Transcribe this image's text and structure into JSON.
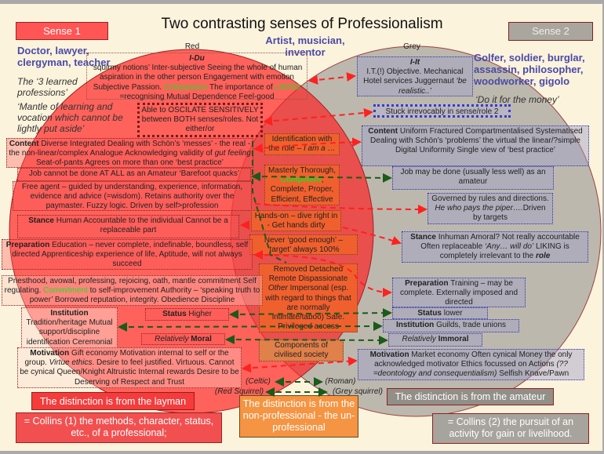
{
  "title": "Two contrasting senses of Professionalism",
  "sense1": "Sense 1",
  "sense2": "Sense 2",
  "colors": {
    "red": "#ff3030",
    "grey": "#bcb8ae",
    "orange": "#f0602e",
    "green_highlight": "#22dd22",
    "blue_text": "#4a4aa8"
  },
  "left": {
    "professions": "Doctor, lawyer, clergyman, teacher",
    "learned": "The ‘3 learned professions’",
    "mantle": "‘Mantle of learning and vocation which cannot be lightly put aside’"
  },
  "middle_top": "Artist, musician, inventor",
  "right": {
    "professions": "Golfer, soldier, burglar, assassin, philosopher, woodworker, gigolo",
    "money": "‘Do it for the money’"
  },
  "red_label": "Red",
  "grey_label": "Grey",
  "idu": {
    "head": "I-Du",
    "a": "‘squirmy notions’ Inter-subjective Seeing the whole of human aspiration in the other person Engagement with emotion Subjective Passion. ",
    "compassion": "Compassion",
    "b": " The importance of ",
    "liking": "LIKING",
    "c": " =recognising Mutual Dependence  Feel-good"
  },
  "iit": {
    "head": "I-It",
    "a": "I.T.(!) Objective. Mechanical Hotel services Juggernaut ",
    "b": "‘be realistic..’"
  },
  "oscilate": "Able to OSCILATE SENSITIVELY between BOTH senses/roles. Not either/or",
  "stuck": "Stuck irrevocably in sense/role 2",
  "content_l": {
    "head": "Content",
    "a": " Diverse Integrated Dealing with Schön’s ‘messes’ - the real - the non-linear/complex Analogue Acknowledging validity of ",
    "b": "gut feeling",
    "c": " Seat-of-pants Agrees on more than one ‘best practice’"
  },
  "content_r": {
    "head": "Content",
    "a": " Uniform Fractured Compartmentalised Systematised Dealing with Schön’s ‘problems’ the virtual the linear/?simple Digital Uniformity Single view of ‘best practice’"
  },
  "identification": {
    "a": "Identification with the role – ",
    "b": "I am a …"
  },
  "mastery": {
    "a": "Masterly Thorough, ",
    "competent": "Competent",
    "b": ", Complete, Proper, Efficient, Effective"
  },
  "job_l": "Job cannot be done AT ALL as an Amateur ‘Barefoot quacks’",
  "job_r": "Job may be done (usually less well) as an amateur",
  "free_agent": "Free agent – guided by understanding, experience, information, evidence and advice (=wisdom). Retains authority over the paymaster. Fuzzy logic. Driven by self>profession",
  "governed": {
    "a": "Governed by rules and directions. ",
    "b": "He who pays the piper….",
    "c": "Driven by targets"
  },
  "hands_on": "Hands-on – dive right in - Get hands dirty",
  "stance_l": {
    "head": "Stance",
    "a": " Human Accountable to the individual Cannot be a replaceable part"
  },
  "stance_r": {
    "head": "Stance",
    "a": " Inhuman Amoral? Not really accountable Often replaceable ",
    "b": "‘Any… will do’",
    "c": " LIKING is completely irrelevant to the ",
    "d": "role"
  },
  "never": "Never ‘good enough’ – ‘target’ always 100%",
  "prep_l": {
    "head": "Preparation",
    "a": " Education – never complete, indefinable, boundless, self directed Apprenticeship experience of life, Aptitude, will not always succeed"
  },
  "prep_r": {
    "head": "Preparation",
    "a": " Training – may be complete. Externally imposed and directed"
  },
  "removed": {
    "a": "Removed Detached Remote Dispassionate ",
    "b": "Other",
    "c": " Impersonal (esp. with regard to things that are normally intimate/taboo) Safe. Privileged access"
  },
  "priesthood": {
    "a": "Priesthood, avowal, professing, rejoicing, oath, mantle commitment Self regulating. ",
    "commitment": "Commitment",
    "b": " to self-improvement Authority – ‘speaking truth to power’ Borrowed reputation, integrity. Obedience Discipline"
  },
  "institution_l": {
    "head": "Institution",
    "a": "Tradition/heritage Mutual support/discipline identification Ceremonial"
  },
  "status_h": {
    "head": "Status",
    "a": " Higher"
  },
  "status_l": {
    "head": "Status",
    "a": " lower"
  },
  "institution_r": {
    "head": "Institution",
    "a": " Guilds, trade unions"
  },
  "moral": {
    "a": "Relatively",
    "b": " Moral"
  },
  "immoral": {
    "a": "Relatively",
    "b": " Immoral"
  },
  "components": "Components of civilised society",
  "motiv_l": {
    "head": "Motivation",
    "a": " Gift economy  Motivation internal to self or the group. ",
    "b": "Virtue ethics",
    "c": ". Desire to feel justified. Virtuous. Cannot be cynical Queen/Knight  Altruistic Internal rewards Desire to be Deserving of Respect and Trust"
  },
  "motiv_r": {
    "head": "Motivation",
    "a": " Market economy  Often cynical Money the only acknowledged motivator Ethics focussed on Actions ",
    "b": "(??=deontology and consequentialism)",
    "c": " Selfish Knave/Pawn"
  },
  "celtic": "(Celtic)",
  "roman": "(Roman)",
  "red_squirrel": "(Red Squirrel)",
  "grey_squirrel": "(Grey squirrel)",
  "layman": "The distinction is from the layman",
  "nonprof": "The distinction is from the non-professional - the un-professional",
  "amateur": "The distinction is from the amateur",
  "collins1": "= Collins (1) the methods, character, status, etc., of a professional;",
  "collins2": "= Collins (2) the pursuit of an activity for gain or livelihood."
}
